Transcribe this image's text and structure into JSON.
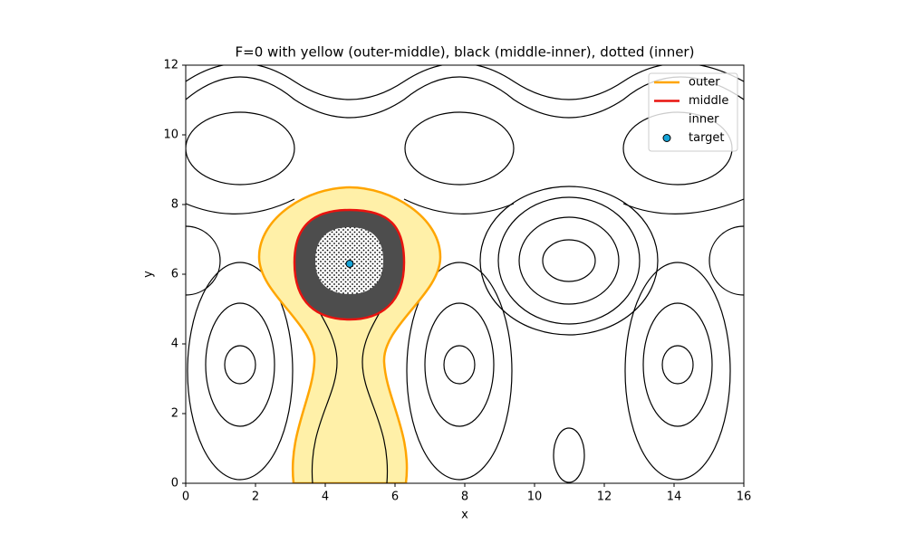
{
  "chart_data": {
    "type": "scatter",
    "title": "F=0 with yellow (outer-middle), black (middle-inner), dotted (inner)",
    "xlabel": "x",
    "ylabel": "y",
    "xlim": [
      0,
      16
    ],
    "ylim": [
      0,
      12
    ],
    "xticks": [
      0,
      2,
      4,
      6,
      8,
      10,
      12,
      14,
      16
    ],
    "yticks": [
      0,
      2,
      4,
      6,
      8,
      10,
      12
    ],
    "regions": [
      {
        "name": "outer",
        "color": "#ffa500",
        "fill": "#fff0a8"
      },
      {
        "name": "middle",
        "color": "#e8130f",
        "fill": "#4d4d4d"
      },
      {
        "name": "inner",
        "fill": "#ffffff"
      }
    ],
    "series": [
      {
        "name": "target",
        "color": "#16a4d8",
        "x": [
          4.7
        ],
        "y": [
          6.3
        ]
      }
    ],
    "legend": "upper right"
  }
}
